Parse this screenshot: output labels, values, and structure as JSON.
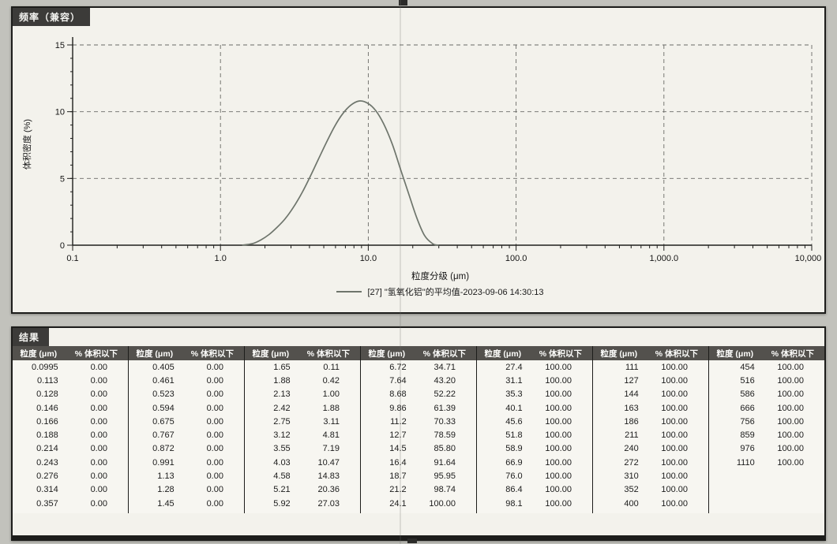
{
  "colors": {
    "curve": "#6e756c",
    "bar_dark": "#3c3b39",
    "table_header_bg": "#53514d"
  },
  "chart_panel": {
    "title": "频率（兼容）",
    "legend": "[27] \"氢氧化铝\"的平均值-2023-09-06 14:30:13"
  },
  "chart_data": {
    "type": "line",
    "title": "频率（兼容）",
    "xlabel": "粒度分级 (μm)",
    "ylabel": "体积密度 (%)",
    "x_scale": "log",
    "xlim": [
      0.1,
      10000
    ],
    "ylim": [
      0,
      15
    ],
    "grid": true,
    "legend_position": "bottom",
    "series_name": "[27] \"氢氧化铝\"的平均值-2023-09-06 14:30:13",
    "x": [
      1.4,
      1.65,
      1.88,
      2.13,
      2.42,
      2.75,
      3.12,
      3.55,
      4.03,
      4.58,
      5.21,
      5.92,
      6.72,
      7.64,
      8.68,
      9.86,
      11.2,
      12.7,
      14.5,
      16.4,
      18.7,
      21.2,
      24.1,
      27.4,
      30
    ],
    "y": [
      0,
      0.12,
      0.4,
      0.8,
      1.35,
      2.0,
      2.85,
      3.9,
      5.1,
      6.4,
      7.7,
      8.9,
      9.85,
      10.5,
      10.8,
      10.65,
      10.1,
      9.1,
      7.6,
      5.8,
      3.9,
      2.1,
      0.7,
      0.1,
      0
    ],
    "x_ticks": [
      {
        "v": 0.1,
        "label": "0.1"
      },
      {
        "v": 1,
        "label": "1.0"
      },
      {
        "v": 10,
        "label": "10.0"
      },
      {
        "v": 100,
        "label": "100.0"
      },
      {
        "v": 1000,
        "label": "1,000.0"
      },
      {
        "v": 10000,
        "label": "10,000.0"
      }
    ],
    "y_ticks": [
      {
        "v": 0,
        "label": "0"
      },
      {
        "v": 5,
        "label": "5"
      },
      {
        "v": 10,
        "label": "10"
      },
      {
        "v": 15,
        "label": "15"
      }
    ]
  },
  "results_panel": {
    "title": "结果",
    "col_header_size": "粒度 (μm)",
    "col_header_pct": "% 体积以下",
    "columns": [
      {
        "rows": [
          [
            "0.0995",
            "0.00"
          ],
          [
            "0.113",
            "0.00"
          ],
          [
            "0.128",
            "0.00"
          ],
          [
            "0.146",
            "0.00"
          ],
          [
            "0.166",
            "0.00"
          ],
          [
            "0.188",
            "0.00"
          ],
          [
            "0.214",
            "0.00"
          ],
          [
            "0.243",
            "0.00"
          ],
          [
            "0.276",
            "0.00"
          ],
          [
            "0.314",
            "0.00"
          ],
          [
            "0.357",
            "0.00"
          ]
        ]
      },
      {
        "rows": [
          [
            "0.405",
            "0.00"
          ],
          [
            "0.461",
            "0.00"
          ],
          [
            "0.523",
            "0.00"
          ],
          [
            "0.594",
            "0.00"
          ],
          [
            "0.675",
            "0.00"
          ],
          [
            "0.767",
            "0.00"
          ],
          [
            "0.872",
            "0.00"
          ],
          [
            "0.991",
            "0.00"
          ],
          [
            "1.13",
            "0.00"
          ],
          [
            "1.28",
            "0.00"
          ],
          [
            "1.45",
            "0.00"
          ]
        ]
      },
      {
        "rows": [
          [
            "1.65",
            "0.11"
          ],
          [
            "1.88",
            "0.42"
          ],
          [
            "2.13",
            "1.00"
          ],
          [
            "2.42",
            "1.88"
          ],
          [
            "2.75",
            "3.11"
          ],
          [
            "3.12",
            "4.81"
          ],
          [
            "3.55",
            "7.19"
          ],
          [
            "4.03",
            "10.47"
          ],
          [
            "4.58",
            "14.83"
          ],
          [
            "5.21",
            "20.36"
          ],
          [
            "5.92",
            "27.03"
          ]
        ]
      },
      {
        "rows": [
          [
            "6.72",
            "34.71"
          ],
          [
            "7.64",
            "43.20"
          ],
          [
            "8.68",
            "52.22"
          ],
          [
            "9.86",
            "61.39"
          ],
          [
            "11.2",
            "70.33"
          ],
          [
            "12.7",
            "78.59"
          ],
          [
            "14.5",
            "85.80"
          ],
          [
            "16.4",
            "91.64"
          ],
          [
            "18.7",
            "95.95"
          ],
          [
            "21.2",
            "98.74"
          ],
          [
            "24.1",
            "100.00"
          ]
        ]
      },
      {
        "rows": [
          [
            "27.4",
            "100.00"
          ],
          [
            "31.1",
            "100.00"
          ],
          [
            "35.3",
            "100.00"
          ],
          [
            "40.1",
            "100.00"
          ],
          [
            "45.6",
            "100.00"
          ],
          [
            "51.8",
            "100.00"
          ],
          [
            "58.9",
            "100.00"
          ],
          [
            "66.9",
            "100.00"
          ],
          [
            "76.0",
            "100.00"
          ],
          [
            "86.4",
            "100.00"
          ],
          [
            "98.1",
            "100.00"
          ]
        ]
      },
      {
        "rows": [
          [
            "111",
            "100.00"
          ],
          [
            "127",
            "100.00"
          ],
          [
            "144",
            "100.00"
          ],
          [
            "163",
            "100.00"
          ],
          [
            "186",
            "100.00"
          ],
          [
            "211",
            "100.00"
          ],
          [
            "240",
            "100.00"
          ],
          [
            "272",
            "100.00"
          ],
          [
            "310",
            "100.00"
          ],
          [
            "352",
            "100.00"
          ],
          [
            "400",
            "100.00"
          ]
        ]
      },
      {
        "rows": [
          [
            "454",
            "100.00"
          ],
          [
            "516",
            "100.00"
          ],
          [
            "586",
            "100.00"
          ],
          [
            "666",
            "100.00"
          ],
          [
            "756",
            "100.00"
          ],
          [
            "859",
            "100.00"
          ],
          [
            "976",
            "100.00"
          ],
          [
            "1110",
            "100.00"
          ]
        ]
      }
    ]
  }
}
